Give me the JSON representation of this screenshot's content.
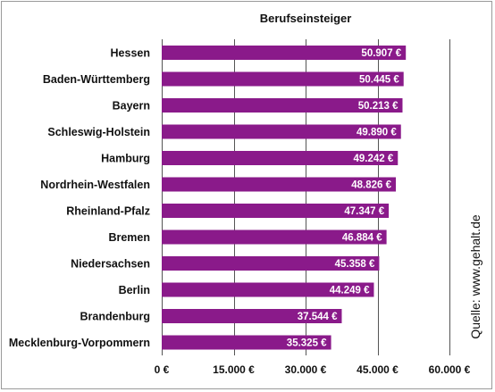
{
  "chart_data": {
    "type": "bar",
    "orientation": "horizontal",
    "title": "Berufseinsteiger",
    "categories": [
      "Hessen",
      "Baden-Württemberg",
      "Bayern",
      "Schleswig-Holstein",
      "Hamburg",
      "Nordrhein-Westfalen",
      "Rheinland-Pfalz",
      "Bremen",
      "Niedersachsen",
      "Berlin",
      "Brandenburg",
      "Mecklenburg-Vorpommern"
    ],
    "values": [
      50907,
      50445,
      50213,
      49890,
      49242,
      48826,
      47347,
      46884,
      45358,
      44249,
      37544,
      35325
    ],
    "value_labels": [
      "50.907 €",
      "50.445 €",
      "50.213 €",
      "49.890 €",
      "49.242 €",
      "48.826 €",
      "47.347 €",
      "46.884 €",
      "45.358 €",
      "44.249 €",
      "37.544 €",
      "35.325 €"
    ],
    "xlim": [
      0,
      60000
    ],
    "xticks": [
      0,
      15000,
      30000,
      45000,
      60000
    ],
    "xtick_labels": [
      "0 €",
      "15.000 €",
      "30.000 €",
      "45.000 €",
      "60.000 €"
    ],
    "xlabel": "",
    "ylabel": "",
    "grid": "vertical",
    "legend": "none",
    "source_label": "Quelle: www.gehalt.de",
    "bar_color": "#8a1a8a",
    "grid_color": "#555555"
  }
}
